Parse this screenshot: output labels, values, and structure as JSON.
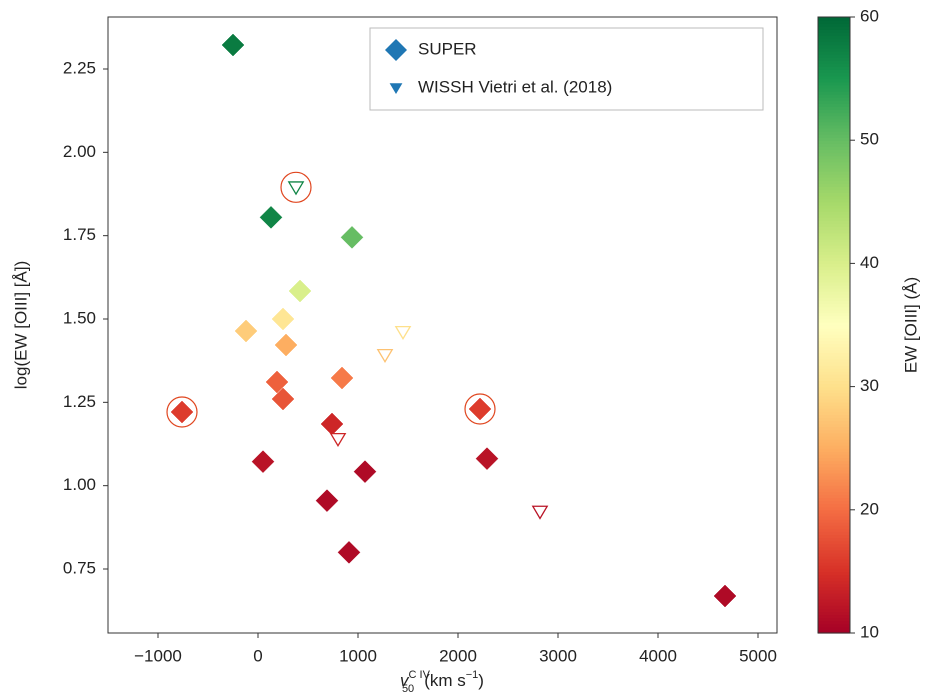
{
  "chart_data": {
    "type": "scatter",
    "xlabel": [
      "v",
      "C IV",
      "50",
      "(km s",
      "−1",
      ")"
    ],
    "ylabel": "log(EW [OIII] [Å])",
    "colorbar_label": "EW [OIII] (Å)",
    "colormap": "RdYlGn",
    "clim": [
      10,
      60
    ],
    "cticks": [
      10,
      20,
      30,
      40,
      50,
      60
    ],
    "xlim": [
      -1500,
      5190
    ],
    "xticks": [
      {
        "value": -1000,
        "label": "−1000"
      },
      0,
      1000,
      2000,
      3000,
      4000,
      5000
    ],
    "ylim": [
      0.558,
      2.406
    ],
    "yticks": [
      0.75,
      {
        "value": 1,
        "label": "1.00"
      },
      1.25,
      {
        "value": 1.5,
        "label": "1.50"
      },
      1.75,
      {
        "value": 2,
        "label": "2.00"
      },
      2.25
    ],
    "legend": "upper right",
    "series": [
      {
        "name": "SUPER",
        "marker": "diamond",
        "color": "#1f77b4",
        "x": [
          -250,
          130,
          940,
          420,
          250,
          -120,
          280,
          840,
          190,
          250,
          -760,
          2220,
          740,
          50,
          2290,
          1070,
          690,
          910,
          4670
        ],
        "y": [
          2.322,
          1.805,
          1.745,
          1.584,
          1.5,
          1.464,
          1.422,
          1.323,
          1.311,
          1.26,
          1.221,
          1.23,
          1.185,
          1.072,
          1.081,
          1.042,
          0.955,
          0.8,
          0.669
        ],
        "c": [
          58,
          57,
          50,
          40,
          31,
          28,
          25,
          21,
          19,
          18,
          16,
          16,
          14,
          12,
          12,
          11,
          11,
          11,
          11
        ],
        "highlighted": [
          false,
          false,
          false,
          false,
          false,
          false,
          false,
          false,
          false,
          false,
          true,
          true,
          false,
          false,
          false,
          false,
          false,
          false,
          false
        ]
      },
      {
        "name": "WISSH Vietri et al. (2018)",
        "marker": "triangle",
        "color": "#1f77b4",
        "x": [
          380,
          1450,
          1270,
          800,
          2820
        ],
        "y": [
          1.895,
          1.461,
          1.392,
          1.14,
          0.922
        ],
        "c": [
          57,
          30,
          27,
          14,
          12
        ],
        "highlighted": [
          true,
          false,
          false,
          false,
          false
        ]
      }
    ]
  }
}
